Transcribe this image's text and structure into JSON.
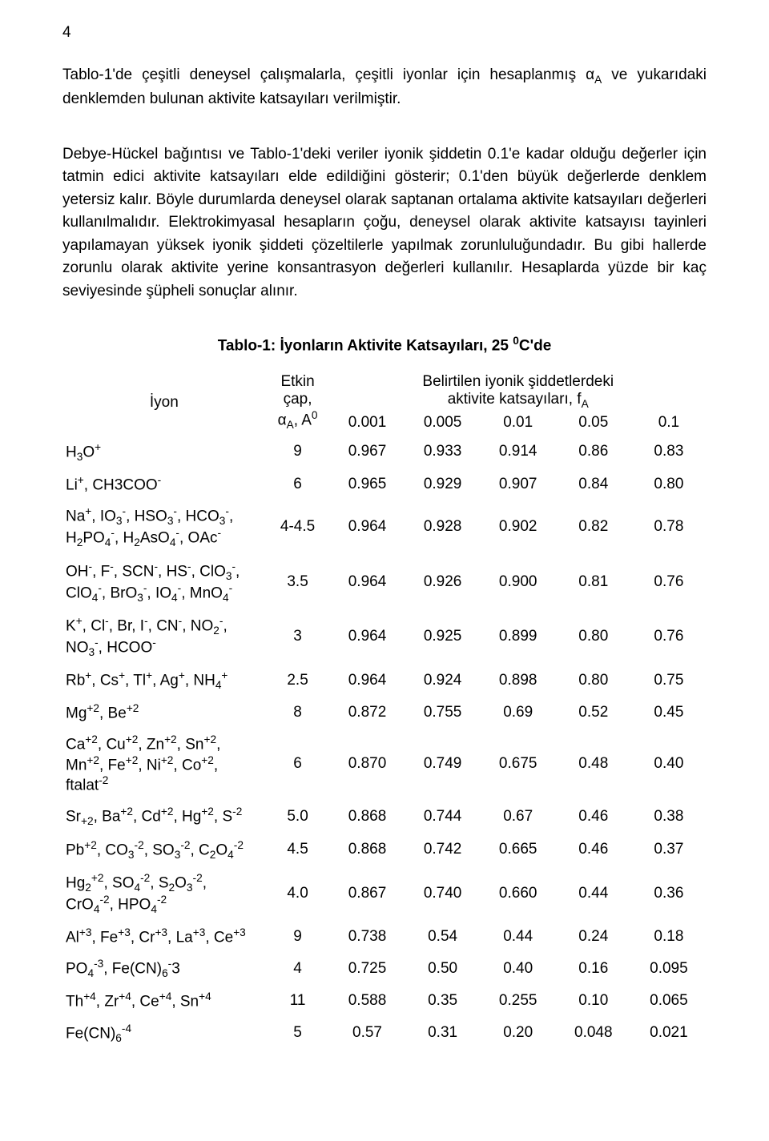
{
  "page_number": "4",
  "paragraph1_html": "Tablo-1'de çeşitli deneysel çalışmalarla, çeşitli iyonlar için hesaplanmış α<span class='sub'>A</span> ve yukarıdaki denklemden bulunan aktivite katsayıları verilmiştir.",
  "paragraph2_html": "Debye-Hückel bağıntısı ve Tablo-1'deki veriler iyonik şiddetin 0.1'e kadar olduğu değerler için tatmin edici aktivite katsayıları elde edildiğini gösterir; 0.1'den büyük değerlerde denklem yetersiz kalır. Böyle durumlarda deneysel olarak saptanan ortalama aktivite katsayıları değerleri kullanılmalıdır. Elektrokimyasal hesapların çoğu, deneysel olarak aktivite katsayısı tayinleri yapılamayan yüksek iyonik şiddeti çözeltilerle yapılmak zorunluluğundadır. Bu gibi hallerde zorunlu olarak aktivite yerine konsantrasyon değerleri kullanılır. Hesaplarda yüzde bir kaç seviyesinde şüpheli sonuçlar alınır.",
  "table": {
    "title_html": "Tablo-1: İyonların Aktivite Katsayıları, 25 <span class='sup'>0</span>C'de",
    "headers": {
      "ion": "İyon",
      "diam_html": "Etkin<br>çap,<br>α<span class='sub'>A</span>, A<span class='sup'>0</span>",
      "group_html": "Belirtilen iyonik şiddetlerdeki<br>aktivite katsayıları, f<span class='sub'>A</span>",
      "mu": [
        "0.001",
        "0.005",
        "0.01",
        "0.05",
        "0.1"
      ]
    },
    "rows": [
      {
        "ion_html": "H<span class='sub'>3</span>O<span class='sup'>+</span>",
        "diam": "9",
        "vals": [
          "0.967",
          "0.933",
          "0.914",
          "0.86",
          "0.83"
        ]
      },
      {
        "ion_html": "Li<span class='sup'>+</span>, CH3COO<span class='sup'>-</span>",
        "diam": "6",
        "vals": [
          "0.965",
          "0.929",
          "0.907",
          "0.84",
          "0.80"
        ]
      },
      {
        "ion_html": "Na<span class='sup'>+</span>, IO<span class='sub'>3</span><span class='sup'>-</span>, HSO<span class='sub'>3</span><span class='sup'>-</span>, HCO<span class='sub'>3</span><span class='sup'>-</span>,<br>H<span class='sub'>2</span>PO<span class='sub'>4</span><span class='sup'>-</span>, H<span class='sub'>2</span>AsO<span class='sub'>4</span><span class='sup'>-</span>, OAc<span class='sup'>-</span>",
        "diam": "4-4.5",
        "vals": [
          "0.964",
          "0.928",
          "0.902",
          "0.82",
          "0.78"
        ]
      },
      {
        "ion_html": "OH<span class='sup'>-</span>, F<span class='sup'>-</span>, SCN<span class='sup'>-</span>, HS<span class='sup'>-</span>, ClO<span class='sub'>3</span><span class='sup'>-</span>,<br>ClO<span class='sub'>4</span><span class='sup'>-</span>, BrO<span class='sub'>3</span><span class='sup'>-</span>, IO<span class='sub'>4</span><span class='sup'>-</span>, MnO<span class='sub'>4</span><span class='sup'>-</span>",
        "diam": "3.5",
        "vals": [
          "0.964",
          "0.926",
          "0.900",
          "0.81",
          "0.76"
        ]
      },
      {
        "ion_html": "K<span class='sup'>+</span>, Cl<span class='sup'>-</span>, Br, I<span class='sup'>-</span>, CN<span class='sup'>-</span>, NO<span class='sub'>2</span><span class='sup'>-</span>,<br>NO<span class='sub'>3</span><span class='sup'>-</span>, HCOO<span class='sup'>-</span>",
        "diam": "3",
        "vals": [
          "0.964",
          "0.925",
          "0.899",
          "0.80",
          "0.76"
        ]
      },
      {
        "ion_html": "Rb<span class='sup'>+</span>, Cs<span class='sup'>+</span>, Tl<span class='sup'>+</span>, Ag<span class='sup'>+</span>, NH<span class='sub'>4</span><span class='sup'>+</span>",
        "diam": "2.5",
        "vals": [
          "0.964",
          "0.924",
          "0.898",
          "0.80",
          "0.75"
        ]
      },
      {
        "ion_html": "Mg<span class='sup'>+2</span>, Be<span class='sup'>+2</span>",
        "diam": "8",
        "vals": [
          "0.872",
          "0.755",
          "0.69",
          "0.52",
          "0.45"
        ]
      },
      {
        "ion_html": "Ca<span class='sup'>+2</span>, Cu<span class='sup'>+2</span>, Zn<span class='sup'>+2</span>, Sn<span class='sup'>+2</span>,<br>Mn<span class='sup'>+2</span>, Fe<span class='sup'>+2</span>, Ni<span class='sup'>+2</span>, Co<span class='sup'>+2</span>,<br>ftalat<span class='sup'>-2</span>",
        "diam": "6",
        "vals": [
          "0.870",
          "0.749",
          "0.675",
          "0.48",
          "0.40"
        ]
      },
      {
        "ion_html": "Sr<span class='sub'>+2</span>, Ba<span class='sup'>+2</span>, Cd<span class='sup'>+2</span>, Hg<span class='sup'>+2</span>, S<span class='sup'>-2</span>",
        "diam": "5.0",
        "vals": [
          "0.868",
          "0.744",
          "0.67",
          "0.46",
          "0.38"
        ]
      },
      {
        "ion_html": "Pb<span class='sup'>+2</span>, CO<span class='sub'>3</span><span class='sup'>-2</span>, SO<span class='sub'>3</span><span class='sup'>-2</span>, C<span class='sub'>2</span>O<span class='sub'>4</span><span class='sup'>-2</span>",
        "diam": "4.5",
        "vals": [
          "0.868",
          "0.742",
          "0.665",
          "0.46",
          "0.37"
        ]
      },
      {
        "ion_html": "Hg<span class='sub'>2</span><span class='sup'>+2</span>, SO<span class='sub'>4</span><span class='sup'>-2</span>, S<span class='sub'>2</span>O<span class='sub'>3</span><span class='sup'>-2</span>,<br>CrO<span class='sub'>4</span><span class='sup'>-2</span>, HPO<span class='sub'>4</span><span class='sup'>-2</span>",
        "diam": "4.0",
        "vals": [
          "0.867",
          "0.740",
          "0.660",
          "0.44",
          "0.36"
        ]
      },
      {
        "ion_html": "Al<span class='sup'>+3</span>, Fe<span class='sup'>+3</span>, Cr<span class='sup'>+3</span>, La<span class='sup'>+3</span>, Ce<span class='sup'>+3</span>",
        "diam": "9",
        "vals": [
          "0.738",
          "0.54",
          "0.44",
          "0.24",
          "0.18"
        ]
      },
      {
        "ion_html": "PO<span class='sub'>4</span><span class='sup'>-3</span>, Fe(CN)<span class='sub'>6</span><span class='sup'>-</span>3",
        "diam": "4",
        "vals": [
          "0.725",
          "0.50",
          "0.40",
          "0.16",
          "0.095"
        ]
      },
      {
        "ion_html": "Th<span class='sup'>+4</span>, Zr<span class='sup'>+4</span>, Ce<span class='sup'>+4</span>, Sn<span class='sup'>+4</span>",
        "diam": "11",
        "vals": [
          "0.588",
          "0.35",
          "0.255",
          "0.10",
          "0.065"
        ]
      },
      {
        "ion_html": "Fe(CN)<span class='sub'>6</span><span class='sup'>-4</span>",
        "diam": "5",
        "vals": [
          "0.57",
          "0.31",
          "0.20",
          "0.048",
          "0.021"
        ]
      }
    ]
  },
  "style": {
    "font_family": "Arial",
    "body_font_size_pt": 14,
    "text_color": "#000000",
    "background_color": "#ffffff"
  }
}
